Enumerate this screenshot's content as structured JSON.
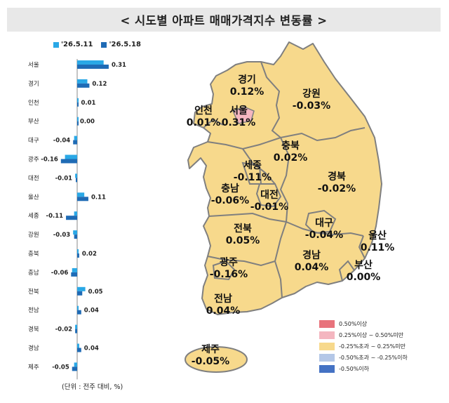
{
  "title": "< 시도별 아파트 매매가격지수 변동률 >",
  "legend": [
    {
      "label": "'26.5.11",
      "color": "#2aa8e6"
    },
    {
      "label": "'26.5.18",
      "color": "#1f6bb5"
    }
  ],
  "unit_note": "(단위 : 전주 대비, %)",
  "chart_data": {
    "type": "bar",
    "orientation": "horizontal",
    "categories": [
      "서울",
      "경기",
      "인천",
      "부산",
      "대구",
      "광주",
      "대전",
      "울산",
      "세종",
      "강원",
      "충북",
      "충남",
      "전북",
      "전남",
      "경북",
      "경남",
      "제주"
    ],
    "series": [
      {
        "name": "'26.5.11",
        "values": [
          0.26,
          0.1,
          0.01,
          0.0,
          -0.03,
          -0.12,
          -0.02,
          0.07,
          -0.03,
          -0.04,
          0.01,
          -0.05,
          0.08,
          0.01,
          -0.02,
          0.02,
          -0.03
        ]
      },
      {
        "name": "'26.5.18",
        "values": [
          0.31,
          0.12,
          0.01,
          0.0,
          -0.04,
          -0.16,
          -0.01,
          0.11,
          -0.11,
          -0.03,
          0.02,
          -0.06,
          0.05,
          0.04,
          -0.02,
          0.04,
          -0.05
        ]
      }
    ],
    "data_labels": [
      "0.31",
      "0.12",
      "0.01",
      "0.00",
      "-0.04",
      "-0.16",
      "-0.01",
      "0.11",
      "-0.11",
      "-0.03",
      "0.02",
      "-0.06",
      "0.05",
      "0.04",
      "-0.02",
      "0.04",
      "-0.05"
    ]
  },
  "map": {
    "regions": [
      {
        "name": "경기",
        "value": "0.12%"
      },
      {
        "name": "강원",
        "value": "-0.03%"
      },
      {
        "name": "인천",
        "value": "0.01%"
      },
      {
        "name": "서울",
        "value": "0.31%"
      },
      {
        "name": "충북",
        "value": "0.02%"
      },
      {
        "name": "세종",
        "value": "-0.11%"
      },
      {
        "name": "충남",
        "value": "-0.06%"
      },
      {
        "name": "대전",
        "value": "-0.01%"
      },
      {
        "name": "경북",
        "value": "-0.02%"
      },
      {
        "name": "대구",
        "value": "-0.04%"
      },
      {
        "name": "울산",
        "value": "0.11%"
      },
      {
        "name": "전북",
        "value": "0.05%"
      },
      {
        "name": "경남",
        "value": "0.04%"
      },
      {
        "name": "부산",
        "value": "0.00%"
      },
      {
        "name": "광주",
        "value": "-0.16%"
      },
      {
        "name": "전남",
        "value": "0.04%"
      },
      {
        "name": "제주",
        "value": "-0.05%"
      }
    ],
    "legend": [
      {
        "label": "0.50%이상",
        "color": "#e8737c"
      },
      {
        "label": "0.25%이상 ~ 0.50%미만",
        "color": "#f4b6c0"
      },
      {
        "label": "-0.25%초과 ~ 0.25%미만",
        "color": "#f7d98c"
      },
      {
        "label": "-0.50%초과 ~ -0.25%이하",
        "color": "#b4c7e7"
      },
      {
        "label": "-0.50%이하",
        "color": "#4472c4"
      }
    ],
    "fill_color": "#f7d98c",
    "highlight_color": "#f4b6c0",
    "border_color": "#7f7f7f"
  }
}
